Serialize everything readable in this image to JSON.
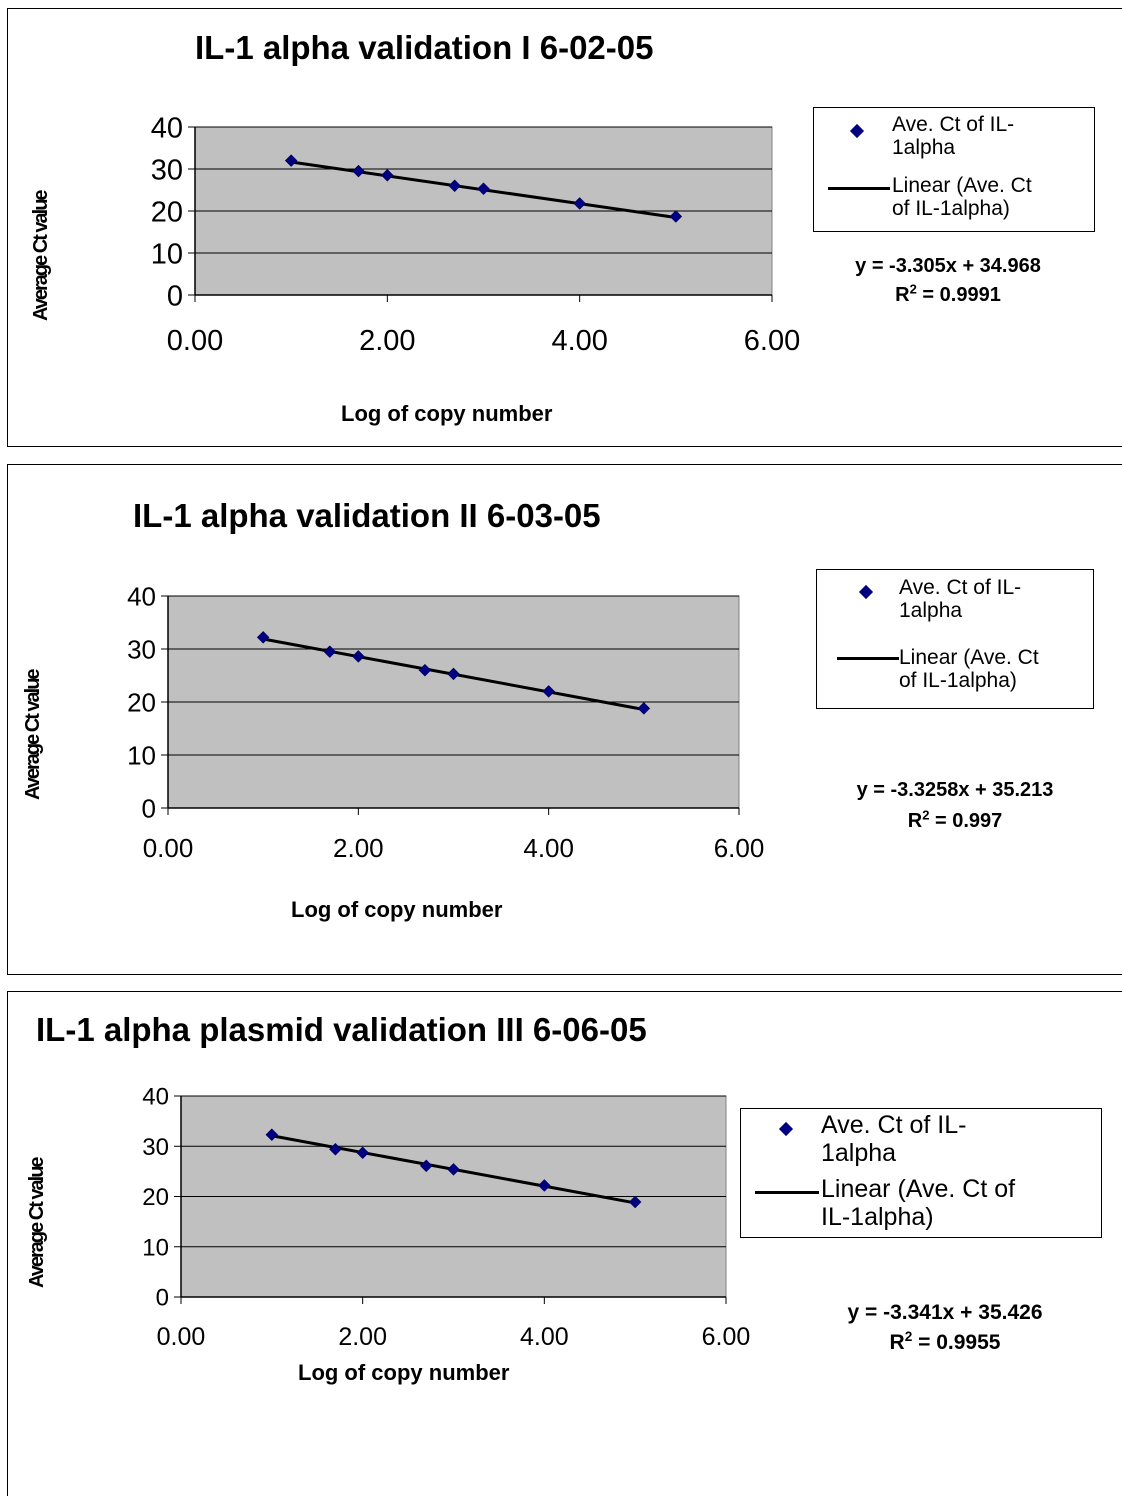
{
  "chart_data": [
    {
      "type": "scatter",
      "title": "IL-1 alpha validation I  6-02-05",
      "xlabel": "Log of copy number",
      "ylabel": "Average Ct value",
      "xlim": [
        0,
        6
      ],
      "ylim": [
        0,
        40
      ],
      "x_ticks": [
        "0.00",
        "2.00",
        "4.00",
        "6.00"
      ],
      "y_ticks": [
        "0",
        "10",
        "20",
        "30",
        "40"
      ],
      "grid": true,
      "legend_position": "right",
      "series": [
        {
          "name": "Ave. Ct of IL-1alpha",
          "kind": "markers",
          "x": [
            1,
            1.7,
            2,
            2.7,
            3,
            4,
            5
          ],
          "y": [
            32,
            29.5,
            28.5,
            26,
            25.3,
            21.8,
            18.7
          ]
        },
        {
          "name": "Linear (Ave. Ct of IL-1alpha)",
          "kind": "trendline",
          "slope": -3.305,
          "intercept": 34.968
        }
      ],
      "legend_labels": [
        "Ave. Ct of IL-",
        "1alpha",
        "Linear (Ave. Ct",
        "of IL-1alpha)"
      ],
      "equation": "y = -3.305x + 34.968",
      "r2_prefix": "R",
      "r2_suffix": " = 0.9991"
    },
    {
      "type": "scatter",
      "title": "IL-1 alpha validation II 6-03-05",
      "xlabel": "Log of copy number",
      "ylabel": "Average Ct value",
      "xlim": [
        0,
        6
      ],
      "ylim": [
        0,
        40
      ],
      "x_ticks": [
        "0.00",
        "2.00",
        "4.00",
        "6.00"
      ],
      "y_ticks": [
        "0",
        "10",
        "20",
        "30",
        "40"
      ],
      "grid": true,
      "legend_position": "right",
      "series": [
        {
          "name": "Ave. Ct of IL-1alpha",
          "kind": "markers",
          "x": [
            1,
            1.7,
            2,
            2.7,
            3,
            4,
            5
          ],
          "y": [
            32.2,
            29.5,
            28.6,
            26,
            25.3,
            22,
            18.8
          ]
        },
        {
          "name": "Linear (Ave. Ct of IL-1alpha)",
          "kind": "trendline",
          "slope": -3.3258,
          "intercept": 35.213
        }
      ],
      "legend_labels": [
        "Ave. Ct of IL-",
        "1alpha",
        "Linear (Ave. Ct",
        "of IL-1alpha)"
      ],
      "equation": "y = -3.3258x + 35.213",
      "r2_prefix": "R",
      "r2_suffix": " = 0.997"
    },
    {
      "type": "scatter",
      "title": "IL-1 alpha plasmid validation III 6-06-05",
      "xlabel": "Log of copy number",
      "ylabel": "Average Ct value",
      "xlim": [
        0,
        6
      ],
      "ylim": [
        0,
        40
      ],
      "x_ticks": [
        "0.00",
        "2.00",
        "4.00",
        "6.00"
      ],
      "y_ticks": [
        "0",
        "10",
        "20",
        "30",
        "40"
      ],
      "grid": true,
      "legend_position": "right",
      "series": [
        {
          "name": "Ave. Ct of IL-1alpha",
          "kind": "markers",
          "x": [
            1,
            1.7,
            2,
            2.7,
            3,
            4,
            5
          ],
          "y": [
            32.3,
            29.4,
            28.7,
            26.1,
            25.4,
            22.2,
            18.9
          ]
        },
        {
          "name": "Linear (Ave. Ct of IL-1alpha)",
          "kind": "trendline",
          "slope": -3.341,
          "intercept": 35.426
        }
      ],
      "legend_labels": [
        "Ave. Ct of IL-",
        "1alpha",
        "Linear (Ave. Ct of",
        "IL-1alpha)"
      ],
      "equation": "y = -3.341x + 35.426",
      "r2_prefix": "R",
      "r2_suffix": " = 0.9955"
    }
  ],
  "colors": {
    "plot_area": "#c0c0c0",
    "marker": "#000080",
    "trendline": "#000000",
    "gridline": "#000000"
  }
}
